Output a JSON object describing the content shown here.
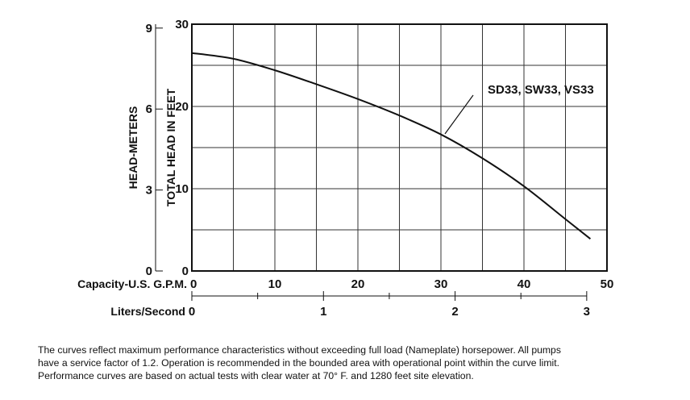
{
  "chart_data": {
    "type": "line",
    "x_axis": {
      "label": "Capacity-U.S. G.P.M.",
      "ticks": [
        0,
        10,
        20,
        30,
        40,
        50
      ],
      "range": [
        0,
        50
      ]
    },
    "x2_axis": {
      "label": "Liters/Second",
      "ticks": [
        0,
        1,
        2,
        3
      ],
      "range": [
        0,
        3.154
      ]
    },
    "y_axis": {
      "label": "TOTAL HEAD IN FEET",
      "ticks": [
        0,
        10,
        20,
        30
      ],
      "range": [
        0,
        30
      ]
    },
    "y2_axis": {
      "label": "HEAD-METERS",
      "ticks": [
        0,
        3,
        6,
        9
      ],
      "range": [
        0,
        9.144
      ]
    },
    "grid": true,
    "series": [
      {
        "name": "SD33, SW33, VS33",
        "x": [
          0,
          5,
          10,
          15,
          20,
          25,
          30,
          35,
          40,
          45,
          48
        ],
        "y": [
          26.5,
          25.8,
          24.4,
          22.7,
          20.9,
          18.9,
          16.6,
          13.7,
          10.3,
          6.3,
          3.9
        ]
      }
    ]
  },
  "footnote": {
    "line1": "The curves reflect maximum performance characteristics without exceeding full load (Nameplate) horsepower. All pumps",
    "line2": "have a service factor of 1.2. Operation is recommended in the bounded area with operational point within the curve limit.",
    "line3": "Performance curves are based on actual tests with clear water at 70° F. and 1280 feet site elevation."
  }
}
